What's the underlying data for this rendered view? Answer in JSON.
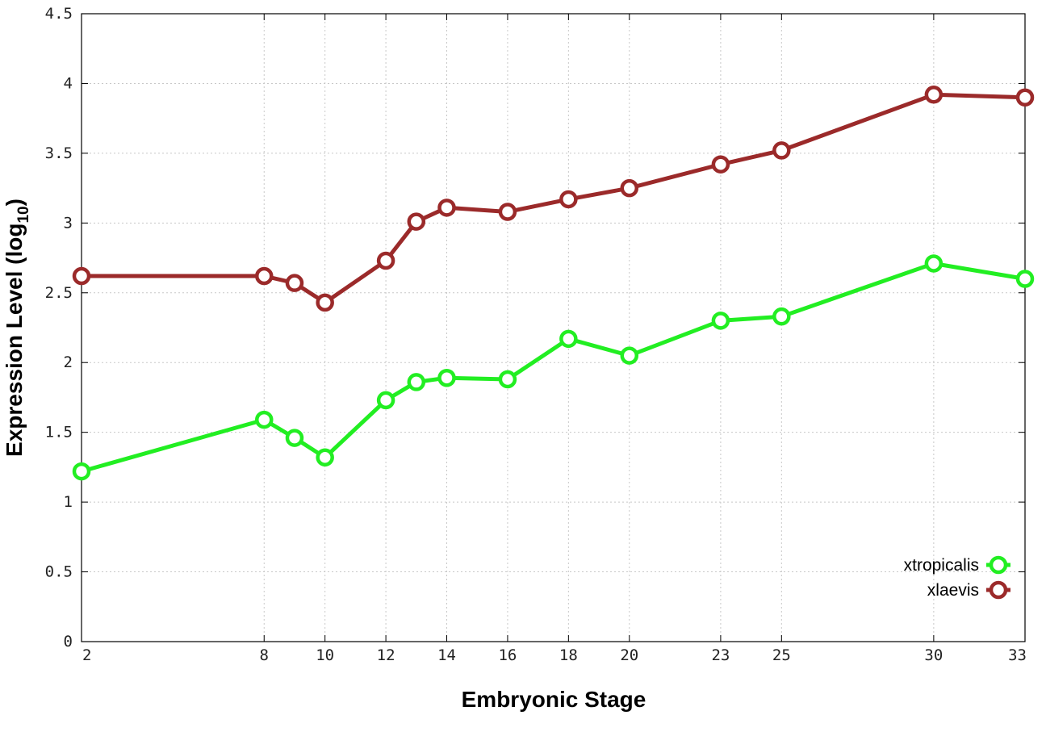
{
  "chart_data": {
    "type": "line",
    "xlabel": "Embryonic Stage",
    "ylabel_main": "Expression Level (log",
    "ylabel_sub": "10",
    "ylabel_close": ")",
    "ylim": [
      0,
      4.5
    ],
    "xlim": [
      2,
      33
    ],
    "y_ticks": [
      "0",
      "0.5",
      "1",
      "1.5",
      "2",
      "2.5",
      "3",
      "3.5",
      "4",
      "4.5"
    ],
    "x_ticks": [
      "2",
      "8",
      "10",
      "12",
      "14",
      "16",
      "18",
      "20",
      "23",
      "25",
      "30",
      "33"
    ],
    "x": [
      2,
      8,
      9,
      10,
      12,
      13,
      14,
      16,
      18,
      20,
      23,
      25,
      30,
      33
    ],
    "grid": true,
    "legend_position": "bottom-right",
    "series": [
      {
        "name": "xtropicalis",
        "color": "#22ee22",
        "values": [
          1.22,
          1.59,
          1.46,
          1.32,
          1.73,
          1.86,
          1.89,
          1.88,
          2.17,
          2.05,
          2.3,
          2.33,
          2.71,
          2.6
        ]
      },
      {
        "name": "xlaevis",
        "color": "#9b2a2a",
        "values": [
          2.62,
          2.62,
          2.57,
          2.43,
          2.73,
          3.01,
          3.11,
          3.08,
          3.17,
          3.25,
          3.42,
          3.52,
          3.92,
          3.9
        ]
      }
    ]
  }
}
